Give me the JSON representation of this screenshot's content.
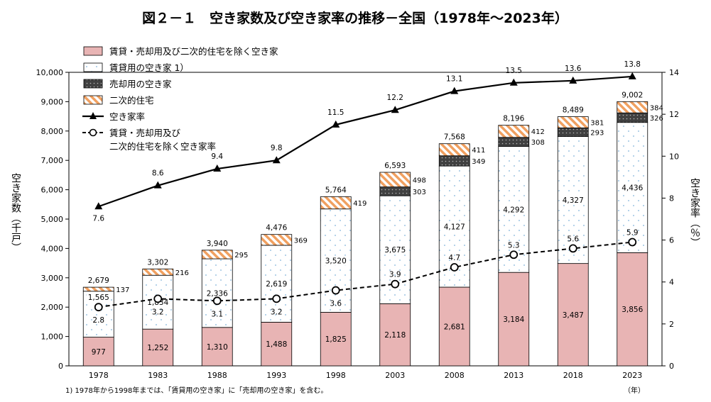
{
  "chart_data": {
    "type": "bar",
    "title": "図２－１　空き家数及び空き家率の推移－全国（1978年～2023年）",
    "categories": [
      "1978",
      "1983",
      "1988",
      "1993",
      "1998",
      "2003",
      "2008",
      "2013",
      "2018",
      "2023"
    ],
    "left_axis": {
      "label": "空き家数（千戸）",
      "ylim": [
        0,
        10000
      ],
      "ticks": [
        "0",
        "1,000",
        "2,000",
        "3,000",
        "4,000",
        "5,000",
        "6,000",
        "7,000",
        "8,000",
        "9,000",
        "10,000"
      ]
    },
    "right_axis": {
      "label": "空き家率（％）",
      "ylim": [
        0,
        14
      ],
      "ticks": [
        "0",
        "2",
        "4",
        "6",
        "8",
        "10",
        "12",
        "14"
      ]
    },
    "x_unit": "（年）",
    "footnote": "1)  1978年から1998年までは、「賃貸用の空き家」に「売却用の空き家」を含む。",
    "grid": false,
    "legend_position": "top-left",
    "series": [
      {
        "name": "賃貸・売却用及び二次的住宅を除く空き家",
        "kind": "bar",
        "values": [
          977,
          1252,
          1310,
          1488,
          1825,
          2118,
          2681,
          3184,
          3487,
          3856
        ],
        "labels": [
          "977",
          "1,252",
          "1,310",
          "1,488",
          "1,825",
          "2,118",
          "2,681",
          "3,184",
          "3,487",
          "3,856"
        ],
        "color": "#e8b4b4"
      },
      {
        "name": "賃貸用の空き家 1）",
        "kind": "bar",
        "values": [
          1565,
          1834,
          2336,
          2619,
          3520,
          3675,
          4127,
          4292,
          4327,
          4436
        ],
        "labels": [
          "1,565",
          "1,834",
          "2,336",
          "2,619",
          "3,520",
          "3,675",
          "4,127",
          "4,292",
          "4,327",
          "4,436"
        ],
        "color": "#7fb2d9"
      },
      {
        "name": "売却用の空き家",
        "kind": "bar",
        "values": [
          null,
          null,
          null,
          null,
          null,
          303,
          349,
          308,
          293,
          326
        ],
        "labels": [
          "",
          "",
          "",
          "",
          "",
          "303",
          "349",
          "308",
          "293",
          "326"
        ],
        "color": "#404040"
      },
      {
        "name": "二次的住宅",
        "kind": "bar",
        "values": [
          137,
          216,
          295,
          369,
          419,
          498,
          411,
          412,
          381,
          384
        ],
        "labels": [
          "137",
          "216",
          "295",
          "369",
          "419",
          "498",
          "411",
          "412",
          "381",
          "384"
        ],
        "color": "#f0a060"
      },
      {
        "name": "空き家率",
        "kind": "line",
        "axis": "right",
        "values": [
          7.6,
          8.6,
          9.4,
          9.8,
          11.5,
          12.2,
          13.1,
          13.5,
          13.6,
          13.8
        ],
        "labels": [
          "7.6",
          "8.6",
          "9.4",
          "9.8",
          "11.5",
          "12.2",
          "13.1",
          "13.5",
          "13.6",
          "13.8"
        ]
      },
      {
        "name": "賃貸・売却用及び\n二次的住宅を除く空き家率",
        "kind": "line",
        "axis": "right",
        "values": [
          2.8,
          3.2,
          3.1,
          3.2,
          3.6,
          3.9,
          4.7,
          5.3,
          5.6,
          5.9
        ],
        "labels": [
          "2.8",
          "3.2",
          "3.1",
          "3.2",
          "3.6",
          "3.9",
          "4.7",
          "5.3",
          "5.6",
          "5.9"
        ]
      }
    ],
    "totals": [
      2679,
      3302,
      3940,
      4476,
      5764,
      6593,
      7568,
      8196,
      8489,
      9002
    ],
    "total_labels": [
      "2,679",
      "3,302",
      "3,940",
      "4,476",
      "5,764",
      "6,593",
      "7,568",
      "8,196",
      "8,489",
      "9,002"
    ]
  }
}
